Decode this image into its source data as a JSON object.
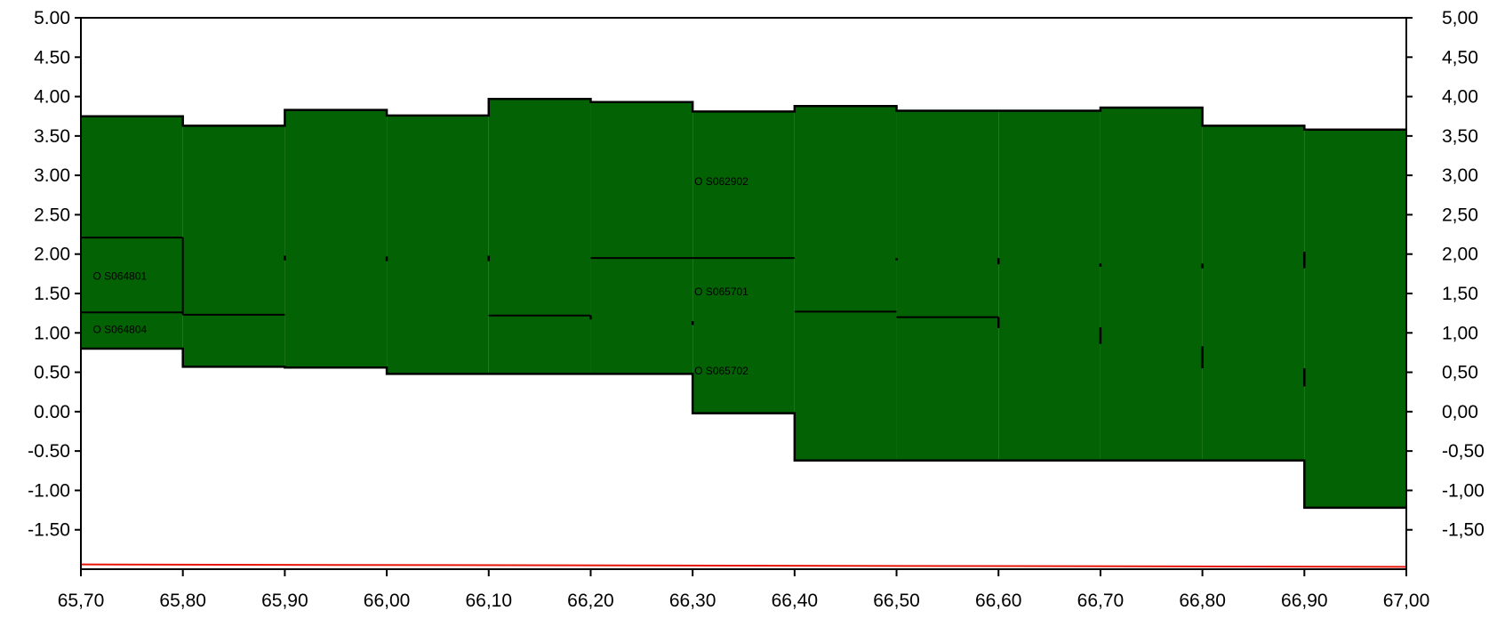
{
  "chart_data": {
    "type": "area",
    "title": "",
    "xlabel": "",
    "ylabel": "",
    "xlim": [
      65.7,
      67.0
    ],
    "ylim": [
      -2.0,
      5.0
    ],
    "grid": false,
    "fill_color": "#036203",
    "line_color": "#000000",
    "baseline_color": "#e8150a",
    "x_ticks": [
      "65,70",
      "65,80",
      "65,90",
      "66,00",
      "66,10",
      "66,20",
      "66,30",
      "66,40",
      "66,50",
      "66,60",
      "66,70",
      "66,80",
      "66,90",
      "67,00"
    ],
    "y_ticks_left": [
      {
        "value": 5.0,
        "label": "5.00"
      },
      {
        "value": 4.5,
        "label": "4.50"
      },
      {
        "value": 4.0,
        "label": "4.00"
      },
      {
        "value": 3.5,
        "label": "3.50"
      },
      {
        "value": 3.0,
        "label": "3.00"
      },
      {
        "value": 2.5,
        "label": "2.50"
      },
      {
        "value": 2.0,
        "label": "2.00"
      },
      {
        "value": 1.5,
        "label": "1.50"
      },
      {
        "value": 1.0,
        "label": "1.00"
      },
      {
        "value": 0.5,
        "label": "0.50"
      },
      {
        "value": 0.0,
        "label": "0.00"
      },
      {
        "value": -0.5,
        "label": "-0.50"
      },
      {
        "value": -1.0,
        "label": "-1.00"
      },
      {
        "value": -1.5,
        "label": "-1.50"
      }
    ],
    "y_ticks_right": [
      {
        "value": 5.0,
        "label": "5,00"
      },
      {
        "value": 4.5,
        "label": "4,50"
      },
      {
        "value": 4.0,
        "label": "4,00"
      },
      {
        "value": 3.5,
        "label": "3,50"
      },
      {
        "value": 3.0,
        "label": "3,00"
      },
      {
        "value": 2.5,
        "label": "2,50"
      },
      {
        "value": 2.0,
        "label": "2,00"
      },
      {
        "value": 1.5,
        "label": "1,50"
      },
      {
        "value": 1.0,
        "label": "1,00"
      },
      {
        "value": 0.5,
        "label": "0,50"
      },
      {
        "value": 0.0,
        "label": "0,00"
      },
      {
        "value": -0.5,
        "label": "-0,50"
      },
      {
        "value": -1.0,
        "label": "-1,00"
      },
      {
        "value": -1.5,
        "label": "-1,50"
      }
    ],
    "segments": [
      {
        "x0": 65.7,
        "x1": 65.8,
        "top": 3.75,
        "bottom": 0.8
      },
      {
        "x0": 65.8,
        "x1": 65.9,
        "top": 3.63,
        "bottom": 0.57
      },
      {
        "x0": 65.9,
        "x1": 66.0,
        "top": 3.83,
        "bottom": 0.56
      },
      {
        "x0": 66.0,
        "x1": 66.1,
        "top": 3.76,
        "bottom": 0.48
      },
      {
        "x0": 66.1,
        "x1": 66.2,
        "top": 3.97,
        "bottom": 0.48
      },
      {
        "x0": 66.2,
        "x1": 66.3,
        "top": 3.93,
        "bottom": 0.48
      },
      {
        "x0": 66.3,
        "x1": 66.4,
        "top": 3.81,
        "bottom": -0.02
      },
      {
        "x0": 66.4,
        "x1": 66.5,
        "top": 3.88,
        "bottom": -0.62
      },
      {
        "x0": 66.5,
        "x1": 66.6,
        "top": 3.82,
        "bottom": -0.62
      },
      {
        "x0": 66.6,
        "x1": 66.7,
        "top": 3.82,
        "bottom": -0.62
      },
      {
        "x0": 66.7,
        "x1": 66.8,
        "top": 3.86,
        "bottom": -0.62
      },
      {
        "x0": 66.8,
        "x1": 66.9,
        "top": 3.63,
        "bottom": -0.62
      },
      {
        "x0": 66.9,
        "x1": 67.0,
        "top": 3.58,
        "bottom": -1.22
      }
    ],
    "inner_lines": [
      {
        "x0": 65.7,
        "x1": 65.8,
        "y": 2.21
      },
      {
        "x0": 65.7,
        "x1": 65.8,
        "y": 1.26
      },
      {
        "x0": 65.8,
        "x1": 65.9,
        "y": 1.23
      },
      {
        "x0": 66.1,
        "x1": 66.2,
        "y": 1.22
      },
      {
        "x0": 66.2,
        "x1": 66.4,
        "y": 1.95
      },
      {
        "x0": 66.4,
        "x1": 66.5,
        "y": 1.27
      },
      {
        "x0": 66.5,
        "x1": 66.6,
        "y": 1.2
      }
    ],
    "boundary_marks": [
      {
        "x": 65.9,
        "y0": 1.92,
        "y1": 1.98
      },
      {
        "x": 66.0,
        "y0": 1.91,
        "y1": 1.97
      },
      {
        "x": 66.1,
        "y0": 1.91,
        "y1": 1.98
      },
      {
        "x": 66.5,
        "y0": 1.92,
        "y1": 1.95
      },
      {
        "x": 66.6,
        "y0": 1.87,
        "y1": 1.95
      },
      {
        "x": 66.7,
        "y0": 1.84,
        "y1": 1.88
      },
      {
        "x": 66.8,
        "y0": 1.82,
        "y1": 1.88
      },
      {
        "x": 66.9,
        "y0": 1.82,
        "y1": 2.03
      },
      {
        "x": 66.2,
        "y0": 1.17,
        "y1": 1.22
      },
      {
        "x": 66.3,
        "y0": 1.1,
        "y1": 1.15
      },
      {
        "x": 66.6,
        "y0": 1.06,
        "y1": 1.2
      },
      {
        "x": 66.7,
        "y0": 0.86,
        "y1": 1.07
      },
      {
        "x": 66.8,
        "y0": 0.55,
        "y1": 0.83
      },
      {
        "x": 66.9,
        "y0": 0.32,
        "y1": 0.55
      }
    ],
    "baseline": {
      "y_start": -1.94,
      "y_end": -1.97
    },
    "annotations": [
      {
        "text": "O S062902",
        "x": 66.3,
        "y": 2.92
      },
      {
        "text": "O S064801",
        "x": 65.71,
        "y": 1.72
      },
      {
        "text": "O S064804",
        "x": 65.71,
        "y": 1.04
      },
      {
        "text": "O S065701",
        "x": 66.3,
        "y": 1.52
      },
      {
        "text": "O S065702",
        "x": 66.3,
        "y": 0.52
      }
    ]
  }
}
